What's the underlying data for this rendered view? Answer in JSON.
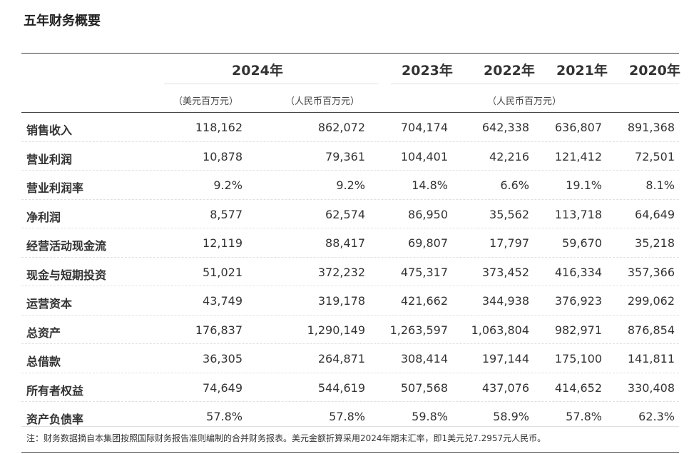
{
  "title": "五年财务概要",
  "header": {
    "years": [
      "2024年",
      "2023年",
      "2022年",
      "2021年",
      "2020年"
    ],
    "units": {
      "usd": "（美元百万元）",
      "rmb_2024": "（人民币百万元）",
      "rmb_other": "（人民币百万元）"
    }
  },
  "rows": [
    {
      "label": "销售收入",
      "values": [
        "118,162",
        "862,072",
        "704,174",
        "642,338",
        "636,807",
        "891,368"
      ]
    },
    {
      "label": "营业利润",
      "values": [
        "10,878",
        "79,361",
        "104,401",
        "42,216",
        "121,412",
        "72,501"
      ]
    },
    {
      "label": "营业利润率",
      "values": [
        "9.2%",
        "9.2%",
        "14.8%",
        "6.6%",
        "19.1%",
        "8.1%"
      ]
    },
    {
      "label": "净利润",
      "values": [
        "8,577",
        "62,574",
        "86,950",
        "35,562",
        "113,718",
        "64,649"
      ]
    },
    {
      "label": "经营活动现金流",
      "values": [
        "12,119",
        "88,417",
        "69,807",
        "17,797",
        "59,670",
        "35,218"
      ]
    },
    {
      "label": "现金与短期投资",
      "values": [
        "51,021",
        "372,232",
        "475,317",
        "373,452",
        "416,334",
        "357,366"
      ]
    },
    {
      "label": "运营资本",
      "values": [
        "43,749",
        "319,178",
        "421,662",
        "344,938",
        "376,923",
        "299,062"
      ]
    },
    {
      "label": "总资产",
      "values": [
        "176,837",
        "1,290,149",
        "1,263,597",
        "1,063,804",
        "982,971",
        "876,854"
      ]
    },
    {
      "label": "总借款",
      "values": [
        "36,305",
        "264,871",
        "308,414",
        "197,144",
        "175,100",
        "141,811"
      ]
    },
    {
      "label": "所有者权益",
      "values": [
        "74,649",
        "544,619",
        "507,568",
        "437,076",
        "414,652",
        "330,408"
      ]
    },
    {
      "label": "资产负债率",
      "values": [
        "57.8%",
        "57.8%",
        "59.8%",
        "58.9%",
        "57.8%",
        "62.3%"
      ]
    }
  ],
  "note": "注：财务数据摘自本集团按照国际财务报告准则编制的合并财务报表。美元金额折算采用2024年期末汇率，即1美元兑7.2957元人民币。"
}
